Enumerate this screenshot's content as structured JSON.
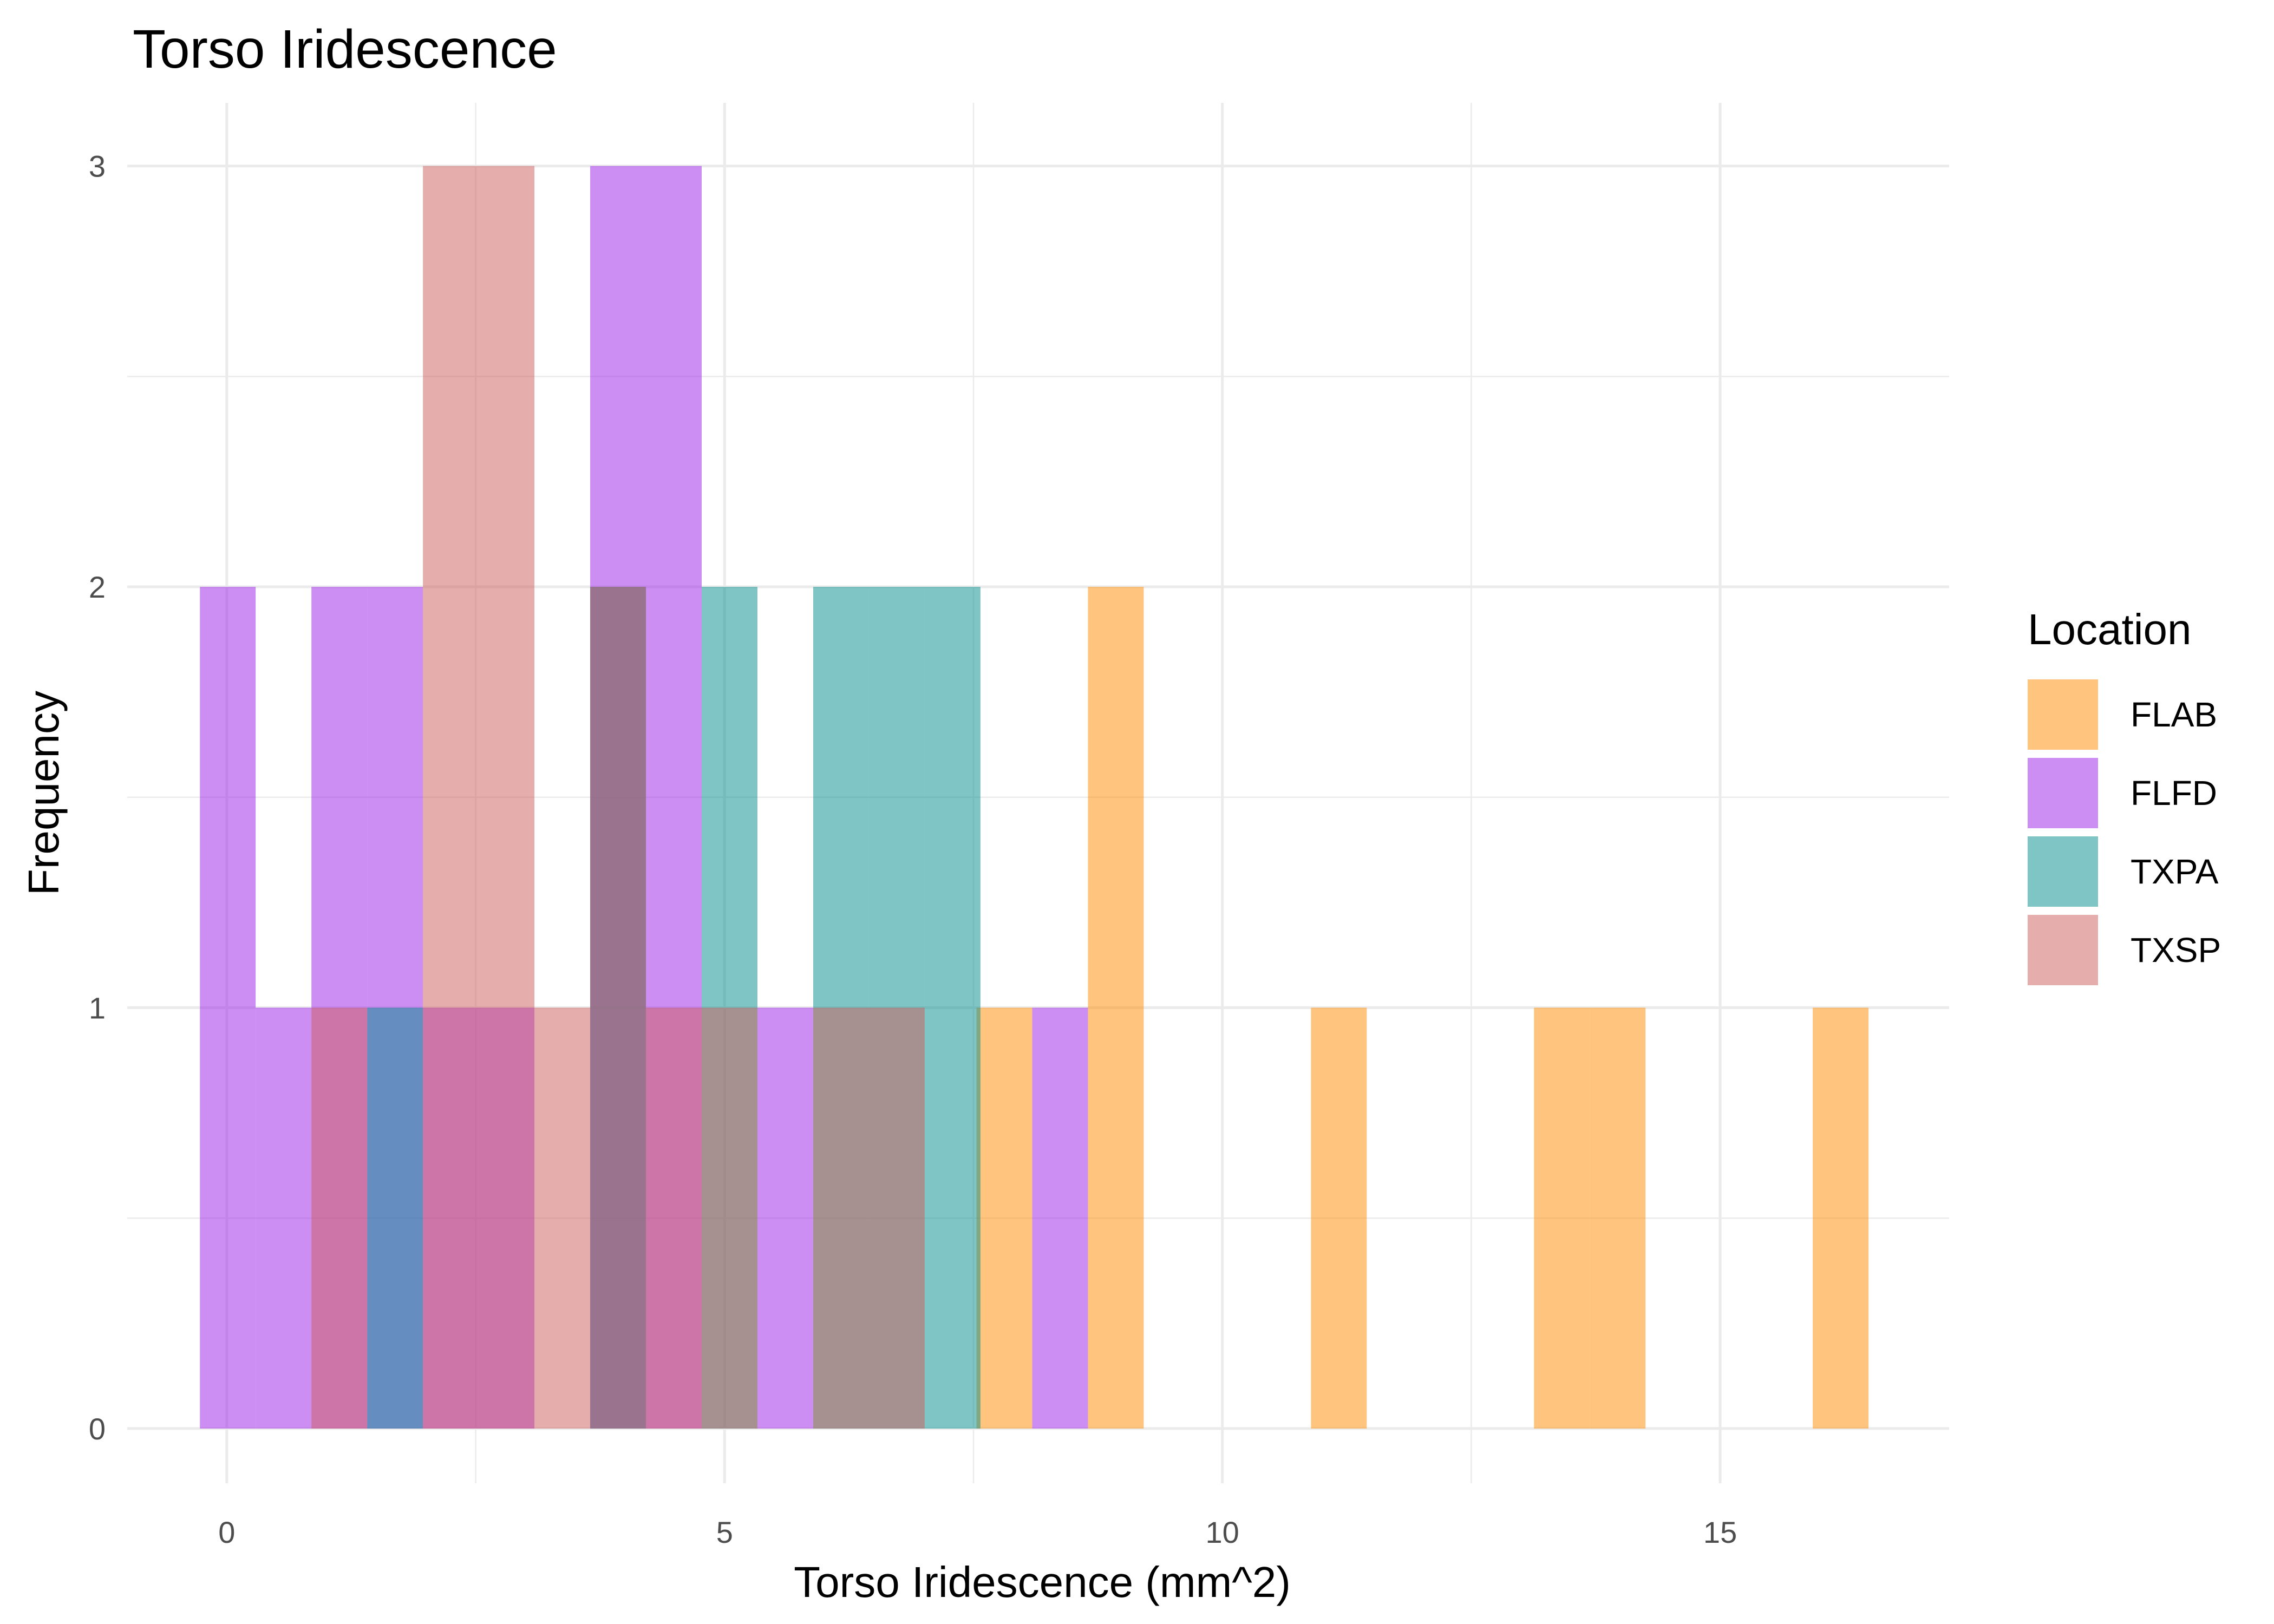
{
  "chart_data": {
    "type": "bar",
    "subtype": "histogram",
    "title": "Torso Iridescence",
    "xlabel": "Torso Iridescence (mm^2)",
    "ylabel": "Frequency",
    "xlim": [
      -1.0,
      17.3
    ],
    "ylim": [
      -0.13,
      3.15
    ],
    "x_ticks": [
      0,
      5,
      10,
      15
    ],
    "y_ticks": [
      0,
      1,
      2,
      3
    ],
    "bin_width": 0.56,
    "grid": true,
    "legend": {
      "title": "Location",
      "placement": "right"
    },
    "bar_opacity": 0.5,
    "series": [
      {
        "name": "FLAB",
        "color": "#FF8C00",
        "bins": [
          {
            "x0": 7.53,
            "x1": 8.09,
            "count": 1
          },
          {
            "x0": 8.65,
            "x1": 9.21,
            "count": 2
          },
          {
            "x0": 10.89,
            "x1": 11.45,
            "count": 1
          },
          {
            "x0": 13.13,
            "x1": 13.69,
            "count": 1
          },
          {
            "x0": 13.69,
            "x1": 14.25,
            "count": 1
          },
          {
            "x0": 15.93,
            "x1": 16.49,
            "count": 1
          }
        ]
      },
      {
        "name": "FLFD",
        "color": "#9B1DEA",
        "bins": [
          {
            "x0": -0.27,
            "x1": 0.29,
            "count": 2
          },
          {
            "x0": 0.29,
            "x1": 0.85,
            "count": 1
          },
          {
            "x0": 0.85,
            "x1": 1.41,
            "count": 2
          },
          {
            "x0": 1.41,
            "x1": 1.97,
            "count": 2
          },
          {
            "x0": 1.97,
            "x1": 2.53,
            "count": 1
          },
          {
            "x0": 2.53,
            "x1": 3.09,
            "count": 1
          },
          {
            "x0": 3.65,
            "x1": 4.21,
            "count": 3
          },
          {
            "x0": 4.21,
            "x1": 4.77,
            "count": 3
          },
          {
            "x0": 5.33,
            "x1": 5.89,
            "count": 1
          },
          {
            "x0": 8.09,
            "x1": 8.65,
            "count": 1
          }
        ]
      },
      {
        "name": "TXPA",
        "color": "#008B8B",
        "bins": [
          {
            "x0": 1.41,
            "x1": 1.97,
            "count": 1
          },
          {
            "x0": 3.65,
            "x1": 4.21,
            "count": 2
          },
          {
            "x0": 4.77,
            "x1": 5.33,
            "count": 2
          },
          {
            "x0": 5.89,
            "x1": 6.45,
            "count": 2
          },
          {
            "x0": 6.45,
            "x1": 7.01,
            "count": 2
          },
          {
            "x0": 7.01,
            "x1": 7.57,
            "count": 2
          }
        ]
      },
      {
        "name": "TXSP",
        "color": "#CD5C5C",
        "bins": [
          {
            "x0": 0.85,
            "x1": 1.41,
            "count": 1
          },
          {
            "x0": 1.97,
            "x1": 2.53,
            "count": 3
          },
          {
            "x0": 2.53,
            "x1": 3.09,
            "count": 3
          },
          {
            "x0": 3.09,
            "x1": 3.65,
            "count": 1
          },
          {
            "x0": 3.65,
            "x1": 4.21,
            "count": 2
          },
          {
            "x0": 4.21,
            "x1": 4.77,
            "count": 1
          },
          {
            "x0": 4.77,
            "x1": 5.33,
            "count": 1
          },
          {
            "x0": 5.89,
            "x1": 6.45,
            "count": 1
          },
          {
            "x0": 6.45,
            "x1": 7.01,
            "count": 1
          }
        ]
      }
    ]
  }
}
